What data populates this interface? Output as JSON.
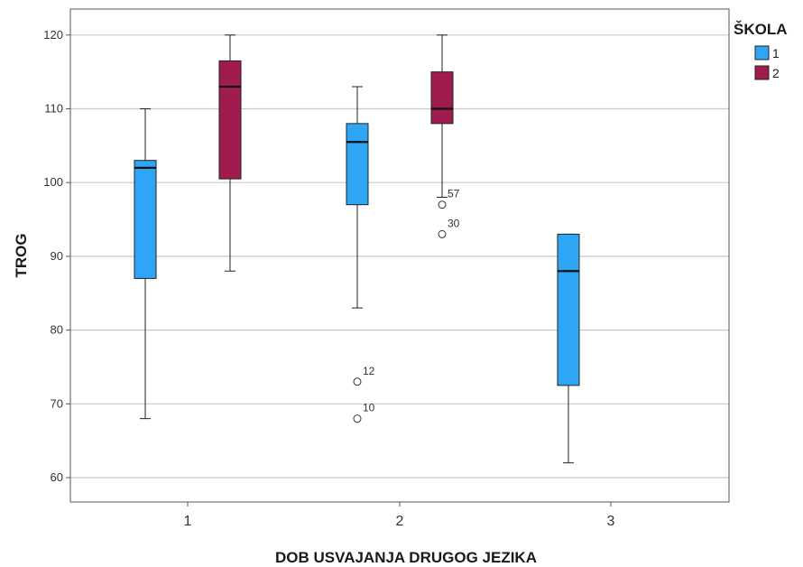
{
  "chart_data": {
    "type": "boxplot",
    "title": "",
    "xlabel": "DOB USVAJANJA DRUGOG JEZIKA",
    "ylabel": "TROG",
    "ylim": [
      57,
      122
    ],
    "yticks": [
      60,
      70,
      80,
      90,
      100,
      110,
      120
    ],
    "grid": true,
    "categories": [
      "1",
      "2",
      "3"
    ],
    "legend": {
      "title": "ŠKOLA",
      "position": "top-right"
    },
    "series": [
      {
        "name": "1",
        "color": "#2ea6f5",
        "boxes": [
          {
            "category": "1",
            "min": 68,
            "q1": 87,
            "median": 102,
            "q3": 103,
            "max": 110,
            "outliers": []
          },
          {
            "category": "2",
            "min": 83,
            "q1": 97,
            "median": 105.5,
            "q3": 108,
            "max": 113,
            "outliers": [
              {
                "value": 73,
                "label": "12"
              },
              {
                "value": 68,
                "label": "10"
              }
            ]
          },
          {
            "category": "3",
            "min": 62,
            "q1": 72.5,
            "median": 88,
            "q3": 93,
            "max": 93,
            "outliers": []
          }
        ]
      },
      {
        "name": "2",
        "color": "#a01c4e",
        "boxes": [
          {
            "category": "1",
            "min": 88,
            "q1": 100.5,
            "median": 113,
            "q3": 116.5,
            "max": 120,
            "outliers": []
          },
          {
            "category": "2",
            "min": 98,
            "q1": 108,
            "median": 110,
            "q3": 115,
            "max": 120,
            "outliers": [
              {
                "value": 97,
                "label": "57"
              },
              {
                "value": 93,
                "label": "30"
              }
            ]
          }
        ]
      }
    ]
  }
}
